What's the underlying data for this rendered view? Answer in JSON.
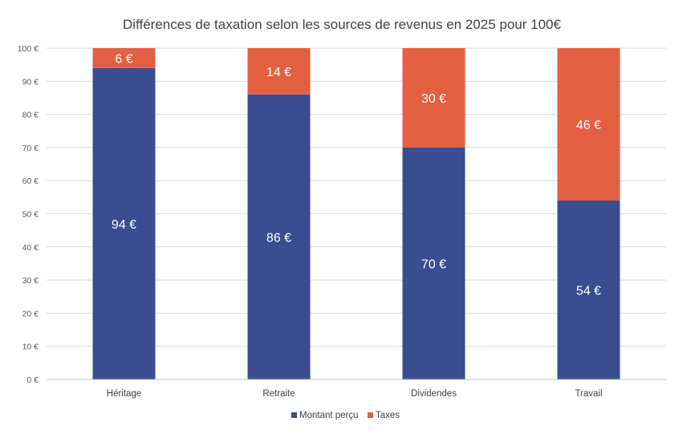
{
  "chart_data": {
    "type": "bar",
    "stacked": true,
    "title": "Différences de taxation selon les sources de revenus en 2025 pour 100€",
    "categories": [
      "Héritage",
      "Retraite",
      "Dividendes",
      "Travail"
    ],
    "series": [
      {
        "name": "Montant perçu",
        "values": [
          94,
          86,
          70,
          54
        ],
        "labels": [
          "94 €",
          "86 €",
          "70 €",
          "54 €"
        ],
        "color": "#3a4d91"
      },
      {
        "name": "Taxes",
        "values": [
          6,
          14,
          30,
          46
        ],
        "labels": [
          "6 €",
          "14 €",
          "30 €",
          "46 €"
        ],
        "color": "#e45e42"
      }
    ],
    "ylim": [
      0,
      100
    ],
    "yticks": [
      0,
      10,
      20,
      30,
      40,
      50,
      60,
      70,
      80,
      90,
      100
    ],
    "ytick_labels": [
      "0 €",
      "10 €",
      "20 €",
      "30 €",
      "40 €",
      "50 €",
      "60 €",
      "70 €",
      "80 €",
      "90 €",
      "100 €"
    ],
    "grid": true,
    "legend_position": "bottom"
  }
}
